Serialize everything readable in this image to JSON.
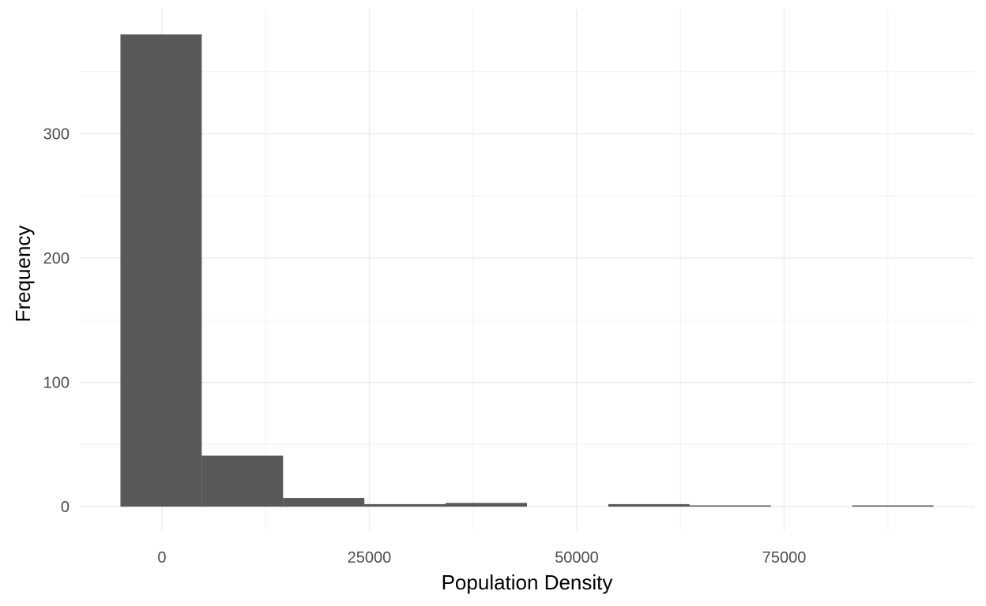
{
  "chart_data": {
    "type": "bar",
    "subtype": "histogram",
    "title": "",
    "xlabel": "Population Density",
    "ylabel": "Frequency",
    "bins": [
      {
        "x_start": -5000,
        "x_end": 4800,
        "count": 380
      },
      {
        "x_start": 4800,
        "x_end": 14600,
        "count": 41
      },
      {
        "x_start": 14600,
        "x_end": 24400,
        "count": 7
      },
      {
        "x_start": 24400,
        "x_end": 34200,
        "count": 2
      },
      {
        "x_start": 34200,
        "x_end": 44000,
        "count": 3
      },
      {
        "x_start": 44000,
        "x_end": 53800,
        "count": 0
      },
      {
        "x_start": 53800,
        "x_end": 63600,
        "count": 2
      },
      {
        "x_start": 63600,
        "x_end": 73400,
        "count": 1
      },
      {
        "x_start": 73400,
        "x_end": 83200,
        "count": 0
      },
      {
        "x_start": 83200,
        "x_end": 93000,
        "count": 1
      }
    ],
    "xlim": [
      -9900,
      97900
    ],
    "ylim": [
      -19,
      400
    ],
    "x_ticks": [
      {
        "value": 0,
        "label": "0"
      },
      {
        "value": 25000,
        "label": "25000"
      },
      {
        "value": 50000,
        "label": "50000"
      },
      {
        "value": 75000,
        "label": "75000"
      }
    ],
    "y_ticks": [
      {
        "value": 0,
        "label": "0"
      },
      {
        "value": 100,
        "label": "100"
      },
      {
        "value": 200,
        "label": "200"
      },
      {
        "value": 300,
        "label": "300"
      }
    ],
    "grid": true,
    "legend": "none",
    "colors": {
      "bar": "#595959",
      "grid_major": "#ebebeb",
      "grid_minor": "#f2f2f2",
      "background": "#ffffff"
    }
  }
}
